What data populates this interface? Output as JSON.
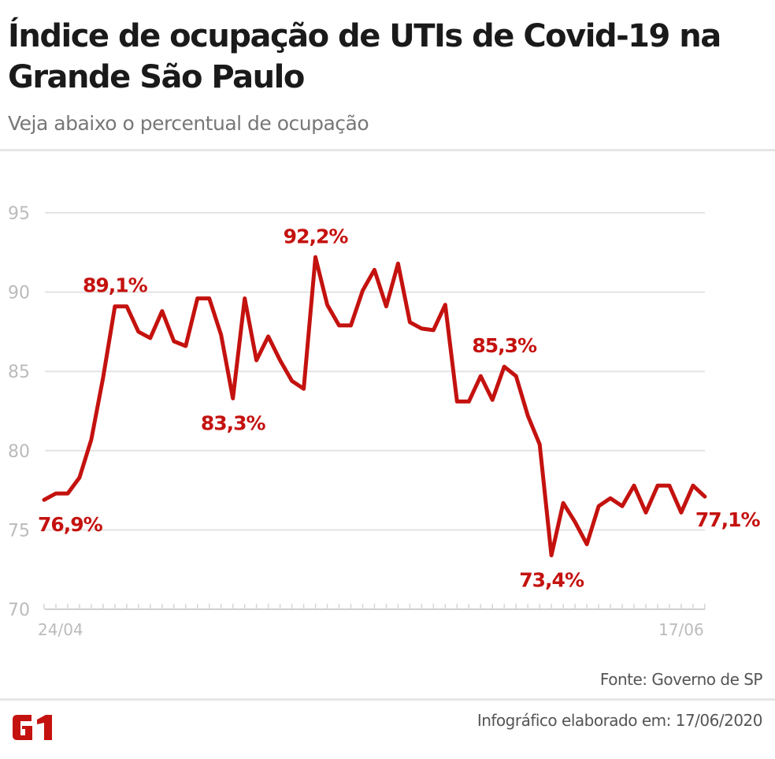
{
  "title": "Índice de ocupação de UTIs de Covid-19 na Grande São Paulo",
  "subtitle": "Veja abaixo o percentual de ocupação",
  "source": "Fonte: Governo de SP",
  "credit": "Infográfico elaborado em: 17/06/2020",
  "logo": "G1",
  "colors": {
    "line": "#c4120f",
    "grid": "#e3e3e3",
    "tick_text": "#bbbbbb",
    "logo": "#c4120f"
  },
  "chart_data": {
    "type": "line",
    "title": "Índice de ocupação de UTIs de Covid-19 na Grande São Paulo",
    "xlabel": "",
    "ylabel": "",
    "x_tick_labels": [
      {
        "index": 0,
        "label": "24/04"
      },
      {
        "index": 54,
        "label": "17/06"
      }
    ],
    "yticks": [
      70,
      75,
      80,
      85,
      90,
      95
    ],
    "ylim": [
      70,
      95
    ],
    "grid": true,
    "values": [
      76.9,
      77.3,
      77.3,
      78.3,
      80.7,
      84.6,
      89.1,
      89.1,
      87.5,
      87.1,
      88.8,
      86.9,
      86.6,
      89.6,
      89.6,
      87.3,
      83.3,
      89.6,
      85.7,
      87.2,
      85.7,
      84.4,
      83.9,
      92.2,
      89.2,
      87.9,
      87.9,
      90.1,
      91.4,
      89.1,
      91.8,
      88.1,
      87.7,
      87.6,
      89.2,
      83.1,
      83.1,
      84.7,
      83.2,
      85.3,
      84.7,
      82.2,
      80.4,
      73.4,
      76.7,
      75.5,
      74.1,
      76.5,
      77.0,
      76.5,
      77.8,
      76.1,
      77.8,
      77.8,
      76.1,
      77.8,
      77.1
    ],
    "annotations": [
      {
        "index": 0,
        "label": "76,9%",
        "pos": "below"
      },
      {
        "index": 6,
        "label": "89,1%",
        "pos": "above"
      },
      {
        "index": 16,
        "label": "83,3%",
        "pos": "below"
      },
      {
        "index": 23,
        "label": "92,2%",
        "pos": "above"
      },
      {
        "index": 39,
        "label": "85,3%",
        "pos": "above"
      },
      {
        "index": 43,
        "label": "73,4%",
        "pos": "below"
      },
      {
        "index": 56,
        "label": "77,1%",
        "pos": "right-below"
      }
    ]
  }
}
